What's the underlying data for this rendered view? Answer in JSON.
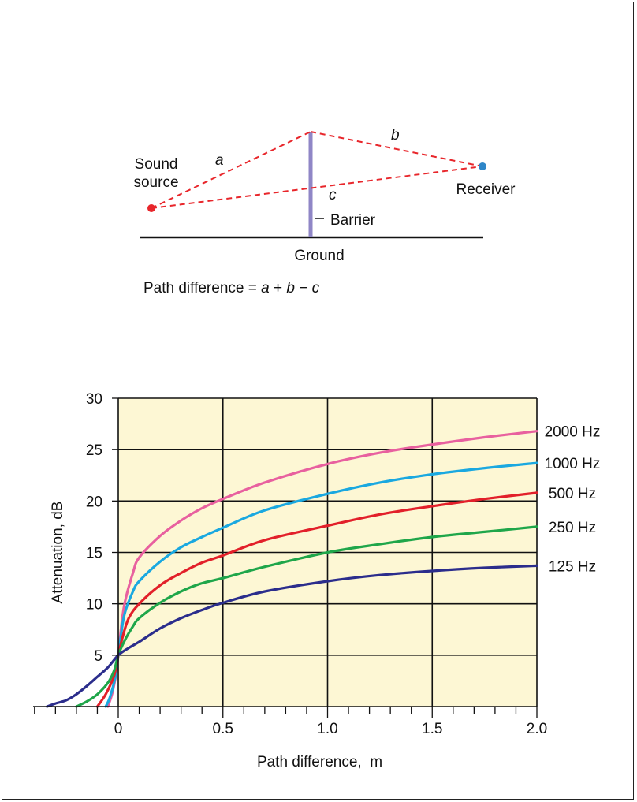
{
  "diagram": {
    "label_a": "a",
    "label_b": "b",
    "label_c": "c",
    "sound_source_line1": "Sound",
    "sound_source_line2": "source",
    "receiver": "Receiver",
    "barrier": "Barrier",
    "ground": "Ground",
    "formula_prefix": "Path difference = ",
    "formula_a": "a",
    "formula_plus": " + ",
    "formula_b": "b",
    "formula_minus": " − ",
    "formula_c": "c",
    "colors": {
      "path": "#e8262b",
      "barrier": "#8f86c6",
      "source": "#e8262b",
      "receiver": "#2e86c8"
    }
  },
  "chart_data": {
    "type": "line",
    "title": "",
    "xlabel": "Path difference,  m",
    "ylabel": "Attenuation, dB",
    "xlim": [
      -0.4,
      2.0
    ],
    "ylim": [
      0,
      30
    ],
    "x_ticks": [
      0,
      0.5,
      1.0,
      1.5,
      2.0
    ],
    "x_tick_labels": [
      "0",
      "0.5",
      "1.0",
      "1.5",
      "2.0"
    ],
    "y_ticks": [
      5,
      10,
      15,
      20,
      25,
      30
    ],
    "y_tick_labels": [
      "5",
      "10",
      "15",
      "20",
      "25",
      "30"
    ],
    "grid": true,
    "plot_background": "#fdf7d4",
    "series": [
      {
        "name": "2000 Hz",
        "color": "#e8609f",
        "points": [
          [
            -0.05,
            0
          ],
          [
            -0.03,
            1.2
          ],
          [
            -0.01,
            3.2
          ],
          [
            0,
            5
          ],
          [
            0.01,
            7
          ],
          [
            0.03,
            10
          ],
          [
            0.07,
            13
          ],
          [
            0.1,
            14.5
          ],
          [
            0.2,
            16.6
          ],
          [
            0.3,
            18.1
          ],
          [
            0.4,
            19.3
          ],
          [
            0.5,
            20.2
          ],
          [
            0.7,
            21.8
          ],
          [
            1.0,
            23.6
          ],
          [
            1.25,
            24.7
          ],
          [
            1.5,
            25.5
          ],
          [
            1.75,
            26.2
          ],
          [
            2.0,
            26.8
          ]
        ]
      },
      {
        "name": "1000 Hz",
        "color": "#1aa8e0",
        "points": [
          [
            -0.06,
            0
          ],
          [
            -0.04,
            0.9
          ],
          [
            -0.015,
            2.8
          ],
          [
            0,
            5
          ],
          [
            0.01,
            6.5
          ],
          [
            0.03,
            9
          ],
          [
            0.07,
            11.2
          ],
          [
            0.1,
            12.2
          ],
          [
            0.2,
            14.1
          ],
          [
            0.3,
            15.5
          ],
          [
            0.4,
            16.5
          ],
          [
            0.5,
            17.4
          ],
          [
            0.7,
            19.1
          ],
          [
            1.0,
            20.7
          ],
          [
            1.25,
            21.8
          ],
          [
            1.5,
            22.6
          ],
          [
            1.75,
            23.2
          ],
          [
            2.0,
            23.7
          ]
        ]
      },
      {
        "name": "500 Hz",
        "color": "#e2202a",
        "points": [
          [
            -0.1,
            0
          ],
          [
            -0.06,
            1.2
          ],
          [
            -0.02,
            3
          ],
          [
            0,
            5
          ],
          [
            0.02,
            6.7
          ],
          [
            0.05,
            8.6
          ],
          [
            0.1,
            10
          ],
          [
            0.2,
            11.8
          ],
          [
            0.3,
            13
          ],
          [
            0.4,
            14
          ],
          [
            0.5,
            14.7
          ],
          [
            0.7,
            16.2
          ],
          [
            1.0,
            17.6
          ],
          [
            1.25,
            18.7
          ],
          [
            1.5,
            19.5
          ],
          [
            1.75,
            20.2
          ],
          [
            2.0,
            20.8
          ]
        ]
      },
      {
        "name": "250 Hz",
        "color": "#1fa64a",
        "points": [
          [
            -0.2,
            0
          ],
          [
            -0.15,
            0.5
          ],
          [
            -0.1,
            1.2
          ],
          [
            -0.05,
            2.3
          ],
          [
            -0.02,
            3.5
          ],
          [
            0,
            5
          ],
          [
            0.03,
            6.4
          ],
          [
            0.07,
            7.8
          ],
          [
            0.1,
            8.6
          ],
          [
            0.2,
            10.1
          ],
          [
            0.3,
            11.2
          ],
          [
            0.4,
            12
          ],
          [
            0.5,
            12.5
          ],
          [
            0.7,
            13.6
          ],
          [
            1.0,
            15
          ],
          [
            1.25,
            15.8
          ],
          [
            1.5,
            16.5
          ],
          [
            1.75,
            17
          ],
          [
            2.0,
            17.5
          ]
        ]
      },
      {
        "name": "125 Hz",
        "color": "#2b2d8c",
        "points": [
          [
            -0.34,
            0
          ],
          [
            -0.3,
            0.3
          ],
          [
            -0.25,
            0.6
          ],
          [
            -0.2,
            1.2
          ],
          [
            -0.15,
            2
          ],
          [
            -0.1,
            2.9
          ],
          [
            -0.05,
            3.8
          ],
          [
            0,
            5
          ],
          [
            0.05,
            5.7
          ],
          [
            0.1,
            6.3
          ],
          [
            0.2,
            7.6
          ],
          [
            0.3,
            8.6
          ],
          [
            0.4,
            9.4
          ],
          [
            0.5,
            10.1
          ],
          [
            0.7,
            11.2
          ],
          [
            1.0,
            12.2
          ],
          [
            1.25,
            12.8
          ],
          [
            1.5,
            13.2
          ],
          [
            1.75,
            13.5
          ],
          [
            2.0,
            13.7
          ]
        ]
      }
    ]
  }
}
